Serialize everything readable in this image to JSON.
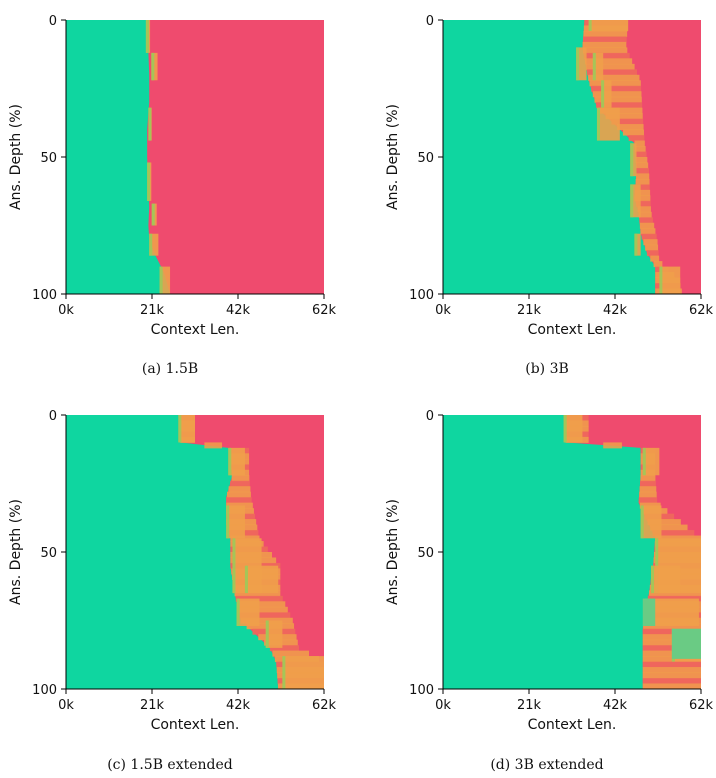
{
  "chart_data": [
    {
      "type": "heatmap",
      "caption": "(a) 1.5B",
      "xlabel": "Context Len.",
      "ylabel": "Ans. Depth (%)",
      "xticks": [
        "0k",
        "21k",
        "42k",
        "62k"
      ],
      "yticks": [
        "0",
        "50",
        "100"
      ],
      "xlim": [
        0,
        62
      ],
      "ylim": [
        0,
        100
      ],
      "colors": {
        "pass": "#0fd6a0",
        "fail": "#ef4b6e",
        "partial": "#f0a04a"
      },
      "boundary": [
        [
          0,
          19.5
        ],
        [
          5,
          20.0
        ],
        [
          12,
          19.8
        ],
        [
          20,
          20.0
        ],
        [
          30,
          20.0
        ],
        [
          40,
          19.5
        ],
        [
          50,
          19.5
        ],
        [
          60,
          19.7
        ],
        [
          68,
          20.0
        ],
        [
          75,
          19.8
        ],
        [
          80,
          20.0
        ],
        [
          86,
          21.5
        ],
        [
          92,
          23.5
        ],
        [
          100,
          25.0
        ]
      ],
      "partial_cells": [
        [
          19.2,
          0,
          1.0,
          12
        ],
        [
          20.5,
          12,
          1.5,
          10
        ],
        [
          19.8,
          32,
          0.8,
          12
        ],
        [
          19.5,
          52,
          1.0,
          14
        ],
        [
          20.6,
          67,
          1.2,
          8
        ],
        [
          20.0,
          78,
          2.2,
          8
        ],
        [
          22.5,
          90,
          2.5,
          10
        ]
      ]
    },
    {
      "type": "heatmap",
      "caption": "(b) 3B",
      "xlabel": "Context Len.",
      "ylabel": "Ans. Depth (%)",
      "xticks": [
        "0k",
        "21k",
        "42k",
        "62k"
      ],
      "yticks": [
        "0",
        "50",
        "100"
      ],
      "xlim": [
        0,
        62
      ],
      "ylim": [
        0,
        100
      ],
      "colors": {
        "pass": "#0fd6a0",
        "fail": "#ef4b6e",
        "partial": "#f0a04a"
      },
      "boundary": [
        [
          0,
          34.0
        ],
        [
          10,
          33.5
        ],
        [
          22,
          35.0
        ],
        [
          32,
          37.0
        ],
        [
          45,
          46.0
        ],
        [
          55,
          46.5
        ],
        [
          65,
          46.0
        ],
        [
          70,
          47.0
        ],
        [
          78,
          47.5
        ],
        [
          85,
          49.0
        ],
        [
          90,
          51.0
        ],
        [
          100,
          51.0
        ]
      ],
      "boundary_right": [
        [
          0,
          44.5
        ],
        [
          10,
          44.0
        ],
        [
          22,
          47.5
        ],
        [
          35,
          48.0
        ],
        [
          45,
          48.5
        ],
        [
          55,
          49.5
        ],
        [
          70,
          50.0
        ],
        [
          80,
          51.5
        ],
        [
          88,
          52.0
        ],
        [
          95,
          57.0
        ],
        [
          100,
          57.5
        ]
      ],
      "partial_cells": [
        [
          32,
          10,
          2.5,
          12
        ],
        [
          35,
          0,
          9.5,
          4
        ],
        [
          36,
          12,
          2.5,
          10
        ],
        [
          38,
          22,
          2.5,
          10
        ],
        [
          37,
          32,
          5.5,
          12
        ],
        [
          45,
          45,
          1.5,
          12
        ],
        [
          45,
          60,
          2.5,
          12
        ],
        [
          46,
          78,
          1.5,
          8
        ],
        [
          52,
          90,
          5,
          10
        ]
      ]
    },
    {
      "type": "heatmap",
      "caption": "(c) 1.5B extended",
      "xlabel": "Context Len.",
      "ylabel": "Ans. Depth (%)",
      "xticks": [
        "0k",
        "21k",
        "42k",
        "62k"
      ],
      "yticks": [
        "0",
        "50",
        "100"
      ],
      "xlim": [
        0,
        62
      ],
      "ylim": [
        0,
        100
      ],
      "colors": {
        "pass": "#0fd6a0",
        "fail": "#ef4b6e",
        "partial": "#f0a04a"
      },
      "boundary": [
        [
          0,
          27.0
        ],
        [
          10,
          27.5
        ],
        [
          12,
          39.0
        ],
        [
          22,
          40.0
        ],
        [
          30,
          38.5
        ],
        [
          40,
          38.5
        ],
        [
          45,
          39.5
        ],
        [
          55,
          39.5
        ],
        [
          65,
          40.5
        ],
        [
          75,
          42.0
        ],
        [
          85,
          49.0
        ],
        [
          90,
          50.5
        ],
        [
          100,
          51.0
        ]
      ],
      "boundary_right": [
        [
          0,
          31.0
        ],
        [
          10,
          31.0
        ],
        [
          12,
          44.0
        ],
        [
          22,
          44.0
        ],
        [
          30,
          44.5
        ],
        [
          45,
          46.5
        ],
        [
          55,
          51.5
        ],
        [
          65,
          51.5
        ],
        [
          75,
          54.5
        ],
        [
          85,
          56.0
        ],
        [
          90,
          62.0
        ],
        [
          100,
          62.0
        ]
      ],
      "partial_cells": [
        [
          27,
          0,
          4,
          10
        ],
        [
          39,
          12,
          4,
          10
        ],
        [
          38.5,
          33,
          4.5,
          12
        ],
        [
          40,
          45,
          7,
          20
        ],
        [
          43,
          55,
          8,
          10
        ],
        [
          41,
          67,
          5.5,
          10
        ],
        [
          48,
          75,
          4,
          10
        ],
        [
          52,
          88,
          10,
          12
        ]
      ]
    },
    {
      "type": "heatmap",
      "caption": "(d) 3B extended",
      "xlabel": "Context Len.",
      "ylabel": "Ans. Depth (%)",
      "xticks": [
        "0k",
        "21k",
        "42k",
        "62k"
      ],
      "yticks": [
        "0",
        "50",
        "100"
      ],
      "xlim": [
        0,
        62
      ],
      "ylim": [
        0,
        100
      ],
      "colors": {
        "pass": "#0fd6a0",
        "fail": "#ef4b6e",
        "partial": "#f0a04a"
      },
      "boundary": [
        [
          0,
          29.0
        ],
        [
          10,
          29.5
        ],
        [
          12,
          47.5
        ],
        [
          22,
          47.5
        ],
        [
          32,
          47.0
        ],
        [
          45,
          51.0
        ],
        [
          55,
          50.5
        ],
        [
          65,
          49.5
        ],
        [
          72,
          48.5
        ],
        [
          78,
          48.0
        ],
        [
          100,
          48.0
        ]
      ],
      "boundary_right": [
        [
          0,
          35.0
        ],
        [
          10,
          35.0
        ],
        [
          12,
          51.0
        ],
        [
          22,
          51.0
        ],
        [
          32,
          51.5
        ],
        [
          45,
          62.0
        ],
        [
          100,
          62.0
        ]
      ],
      "partial_cells": [
        [
          29,
          0,
          4.5,
          10
        ],
        [
          48,
          12,
          4,
          10
        ],
        [
          47.5,
          33,
          5,
          12
        ],
        [
          51,
          45,
          11,
          20
        ],
        [
          50,
          55,
          7,
          10
        ],
        [
          48.5,
          67,
          13,
          10
        ],
        [
          48,
          78,
          5,
          0
        ],
        [
          55,
          78,
          7,
          12
        ]
      ],
      "light_cells": [
        [
          48,
          67,
          3,
          10
        ],
        [
          55,
          78,
          7,
          11
        ]
      ]
    }
  ]
}
